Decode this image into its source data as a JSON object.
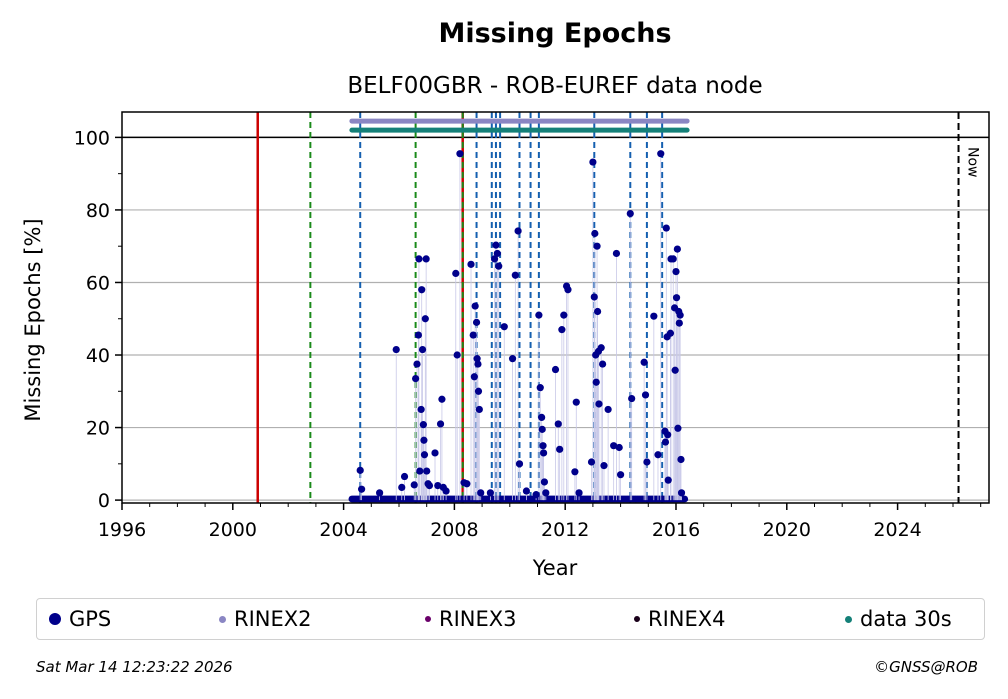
{
  "chart_data": {
    "type": "scatter",
    "title": "Missing Epochs",
    "subtitle": "BELF00GBR - ROB-EUREF data node",
    "xlabel": "Year",
    "ylabel": "Missing Epochs [%]",
    "xlim": [
      1996,
      2027.3
    ],
    "ylim": [
      -0.8,
      107
    ],
    "x_ticks": [
      1996,
      2000,
      2004,
      2008,
      2012,
      2016,
      2020,
      2024
    ],
    "y_ticks": [
      0,
      20,
      40,
      60,
      80,
      100
    ],
    "grid": "horizontal",
    "reference_line_y": 100,
    "now_line": {
      "x": 2026.2,
      "label": "Now"
    },
    "vertical_lines": {
      "red": [
        2000.9,
        2008.3
      ],
      "green": [
        2002.8,
        2006.6,
        2008.3
      ],
      "blue": [
        2004.6,
        2008.8,
        2009.35,
        2009.5,
        2009.65,
        2010.35,
        2010.75,
        2011.05,
        2013.05,
        2014.35,
        2014.95,
        2015.5
      ]
    },
    "bars": [
      {
        "name": "RINEX2",
        "x_start": 2004.3,
        "x_end": 2016.4,
        "y": 104.5,
        "color": "#8a86c3"
      },
      {
        "name": "data 30s",
        "x_start": 2004.3,
        "x_end": 2016.4,
        "y": 102,
        "color": "#148078"
      }
    ],
    "series": [
      {
        "name": "GPS",
        "color": "#00008b",
        "points": [
          [
            2004.6,
            8.2
          ],
          [
            2004.65,
            3
          ],
          [
            2005.3,
            2
          ],
          [
            2005.9,
            41.5
          ],
          [
            2006.1,
            3.5
          ],
          [
            2006.2,
            6.5
          ],
          [
            2006.55,
            4.2
          ],
          [
            2006.6,
            33.5
          ],
          [
            2006.65,
            37.5
          ],
          [
            2006.7,
            45.5
          ],
          [
            2006.72,
            66.5
          ],
          [
            2006.75,
            8
          ],
          [
            2006.8,
            25
          ],
          [
            2006.82,
            58
          ],
          [
            2006.85,
            41.5
          ],
          [
            2006.88,
            20.8
          ],
          [
            2006.9,
            16.5
          ],
          [
            2006.92,
            12.5
          ],
          [
            2006.95,
            50
          ],
          [
            2006.98,
            66.5
          ],
          [
            2007.0,
            8
          ],
          [
            2007.05,
            4.5
          ],
          [
            2007.1,
            4
          ],
          [
            2007.3,
            13
          ],
          [
            2007.4,
            4
          ],
          [
            2007.5,
            21
          ],
          [
            2007.55,
            27.8
          ],
          [
            2007.6,
            3.5
          ],
          [
            2007.7,
            2.5
          ],
          [
            2008.05,
            62.5
          ],
          [
            2008.1,
            40
          ],
          [
            2008.2,
            95.5
          ],
          [
            2008.35,
            4.8
          ],
          [
            2008.45,
            4.5
          ],
          [
            2008.6,
            65
          ],
          [
            2008.68,
            45.5
          ],
          [
            2008.72,
            34
          ],
          [
            2008.75,
            53.5
          ],
          [
            2008.8,
            49
          ],
          [
            2008.82,
            39
          ],
          [
            2008.85,
            37.5
          ],
          [
            2008.87,
            30
          ],
          [
            2008.9,
            25
          ],
          [
            2008.95,
            2
          ],
          [
            2009.3,
            2
          ],
          [
            2009.45,
            66.5
          ],
          [
            2009.5,
            70.3
          ],
          [
            2009.55,
            68
          ],
          [
            2009.6,
            64.5
          ],
          [
            2009.8,
            47.8
          ],
          [
            2010.1,
            39
          ],
          [
            2010.2,
            62
          ],
          [
            2010.3,
            74.2
          ],
          [
            2010.35,
            10
          ],
          [
            2010.6,
            2.5
          ],
          [
            2010.95,
            1.5
          ],
          [
            2011.05,
            51
          ],
          [
            2011.1,
            31
          ],
          [
            2011.15,
            22.8
          ],
          [
            2011.17,
            19.5
          ],
          [
            2011.2,
            15
          ],
          [
            2011.22,
            13
          ],
          [
            2011.25,
            5
          ],
          [
            2011.3,
            2
          ],
          [
            2011.65,
            36
          ],
          [
            2011.75,
            21
          ],
          [
            2011.8,
            14
          ],
          [
            2011.88,
            47
          ],
          [
            2011.95,
            51
          ],
          [
            2012.05,
            59
          ],
          [
            2012.1,
            58
          ],
          [
            2012.4,
            27
          ],
          [
            2012.35,
            7.8
          ],
          [
            2012.5,
            2
          ],
          [
            2012.95,
            10.5
          ],
          [
            2013.0,
            93.2
          ],
          [
            2013.05,
            56
          ],
          [
            2013.07,
            73.5
          ],
          [
            2013.1,
            40
          ],
          [
            2013.12,
            32.5
          ],
          [
            2013.15,
            70
          ],
          [
            2013.17,
            52
          ],
          [
            2013.2,
            41
          ],
          [
            2013.22,
            26.5
          ],
          [
            2013.3,
            42
          ],
          [
            2013.35,
            37.5
          ],
          [
            2013.4,
            9.5
          ],
          [
            2013.55,
            25
          ],
          [
            2013.75,
            15
          ],
          [
            2013.85,
            68
          ],
          [
            2013.95,
            14.5
          ],
          [
            2014.0,
            7
          ],
          [
            2014.35,
            79
          ],
          [
            2014.4,
            28
          ],
          [
            2014.85,
            38
          ],
          [
            2014.9,
            29
          ],
          [
            2014.95,
            10.5
          ],
          [
            2015.2,
            50.7
          ],
          [
            2015.35,
            12.5
          ],
          [
            2015.45,
            95.5
          ],
          [
            2015.6,
            19
          ],
          [
            2015.62,
            16
          ],
          [
            2015.65,
            75
          ],
          [
            2015.68,
            45
          ],
          [
            2015.7,
            18
          ],
          [
            2015.72,
            5.5
          ],
          [
            2015.8,
            46
          ],
          [
            2015.82,
            66.5
          ],
          [
            2015.9,
            66.5
          ],
          [
            2015.95,
            53
          ],
          [
            2015.97,
            35.8
          ],
          [
            2016.0,
            63
          ],
          [
            2016.02,
            55.8
          ],
          [
            2016.05,
            69.2
          ],
          [
            2016.07,
            19.8
          ],
          [
            2016.1,
            52
          ],
          [
            2016.12,
            48.8
          ],
          [
            2016.15,
            51
          ],
          [
            2016.18,
            11.2
          ],
          [
            2016.2,
            2
          ]
        ]
      },
      {
        "name": "RINEX3",
        "color": "#6a006a",
        "points": []
      },
      {
        "name": "RINEX4",
        "color": "#1a001a",
        "points": []
      },
      {
        "name": "data 30s",
        "color": "#148078",
        "points": []
      }
    ],
    "legend": {
      "placement": "bottom",
      "entries": [
        {
          "label": "GPS",
          "color": "#00008b"
        },
        {
          "label": "RINEX2",
          "color": "#8a86c3"
        },
        {
          "label": "RINEX3",
          "color": "#6a006a"
        },
        {
          "label": "RINEX4",
          "color": "#1a001a"
        },
        {
          "label": "data 30s",
          "color": "#148078"
        }
      ]
    }
  },
  "footer": {
    "date": "Sat Mar 14 12:23:22 2026",
    "copyright": "©GNSS@ROB"
  }
}
